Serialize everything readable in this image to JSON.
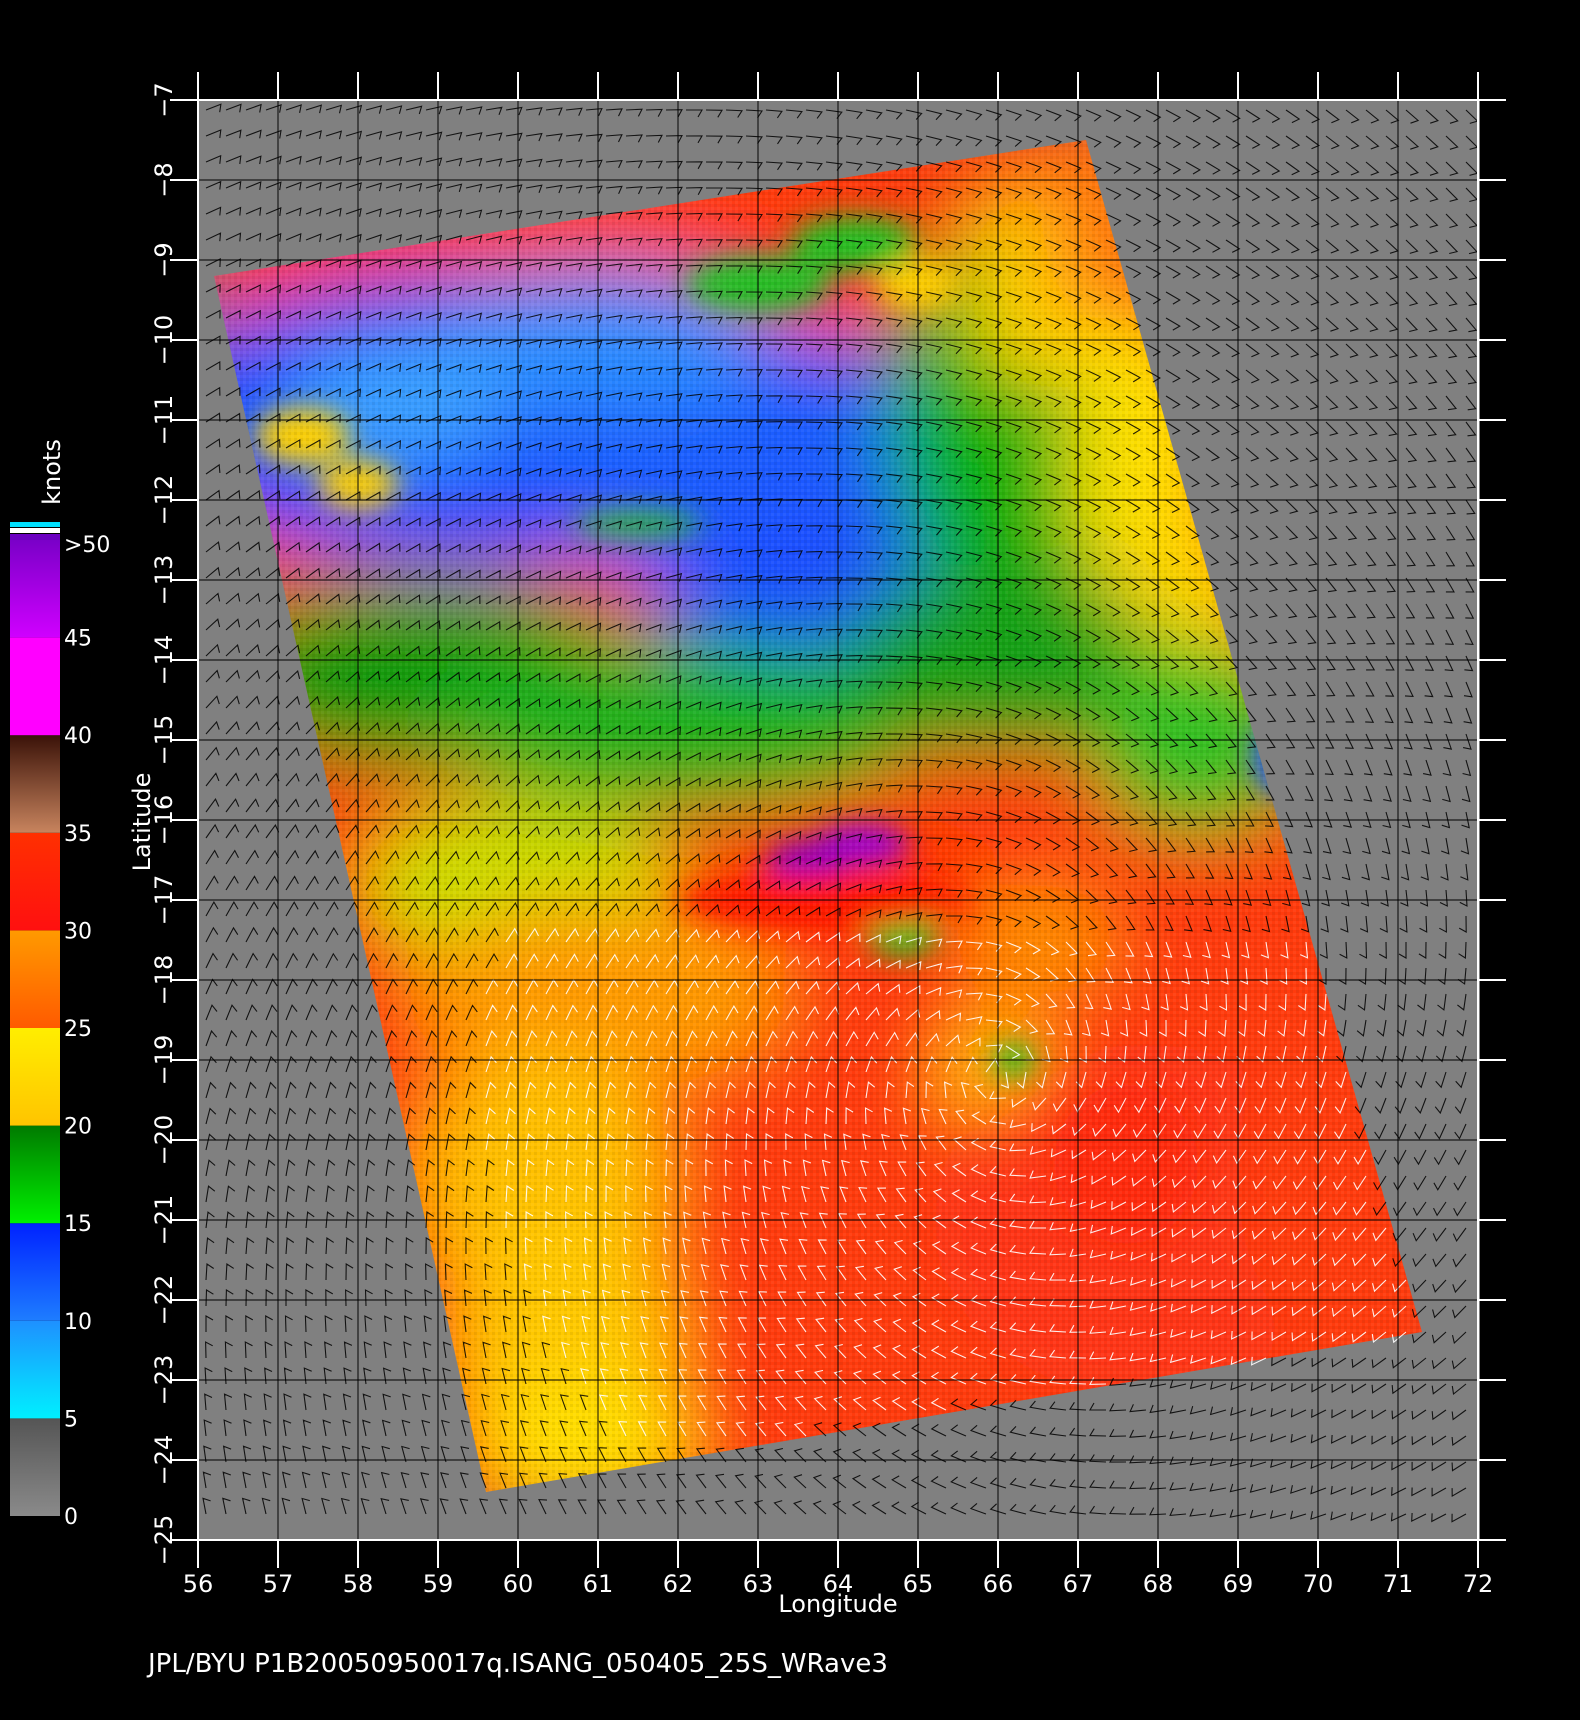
{
  "map": {
    "xaxis": {
      "label": "Longitude",
      "ticks": [
        56,
        57,
        58,
        59,
        60,
        61,
        62,
        63,
        64,
        65,
        66,
        67,
        68,
        69,
        70,
        71,
        72
      ],
      "tick_labels": [
        "56",
        "57",
        "58",
        "59",
        "60",
        "61",
        "62",
        "63",
        "64",
        "65",
        "66",
        "67",
        "68",
        "69",
        "70",
        "71",
        "72"
      ]
    },
    "yaxis": {
      "label": "Latitude",
      "ticks": [
        -7,
        -8,
        -9,
        -10,
        -11,
        -12,
        -13,
        -14,
        -15,
        -16,
        -17,
        -18,
        -19,
        -20,
        -21,
        -22,
        -23,
        -24,
        -25
      ],
      "tick_labels": [
        "−7",
        "−8",
        "−9",
        "−10",
        "−11",
        "−12",
        "−13",
        "−14",
        "−15",
        "−16",
        "−17",
        "−18",
        "−19",
        "−20",
        "−21",
        "−22",
        "−23",
        "−24",
        "−25"
      ]
    },
    "lon_range": [
      56,
      72
    ],
    "lat_range": [
      -25,
      -7
    ],
    "swath_corners_lonlat": [
      [
        56.2,
        -9.2
      ],
      [
        67.1,
        -7.5
      ],
      [
        71.3,
        -22.4
      ],
      [
        59.6,
        -24.4
      ]
    ],
    "storm_center_lonlat": [
      66.0,
      -19.2
    ],
    "background_color": "#808080"
  },
  "legend": {
    "title": "knots",
    "labels": [
      ">50",
      "45",
      "40",
      "35",
      "30",
      "25",
      "20",
      "15",
      "10",
      "5",
      "0"
    ],
    "bands": [
      {
        "from": 0,
        "to": 5,
        "top": "#555555",
        "bottom": "#8a8a8a"
      },
      {
        "from": 5,
        "to": 10,
        "top": "#1e90ff",
        "bottom": "#00f0ff"
      },
      {
        "from": 10,
        "to": 15,
        "top": "#0022ff",
        "bottom": "#1e7dff"
      },
      {
        "from": 15,
        "to": 20,
        "top": "#007a00",
        "bottom": "#00f000"
      },
      {
        "from": 20,
        "to": 25,
        "top": "#ffee00",
        "bottom": "#ffc400"
      },
      {
        "from": 25,
        "to": 30,
        "top": "#ff9a00",
        "bottom": "#ff5a00"
      },
      {
        "from": 30,
        "to": 35,
        "top": "#ff3000",
        "bottom": "#ff1010"
      },
      {
        "from": 35,
        "to": 40,
        "top": "#3a1208",
        "bottom": "#c8845e"
      },
      {
        "from": 40,
        "to": 45,
        "top": "#ff00ff",
        "bottom": "#ff00ff"
      },
      {
        "from": 45,
        "to": 50,
        "top": "#7a00c8",
        "bottom": "#d000ff"
      }
    ]
  },
  "footer": {
    "text": "JPL/BYU  P1B20050950017q.ISANG_050405_25S_WRave3"
  }
}
